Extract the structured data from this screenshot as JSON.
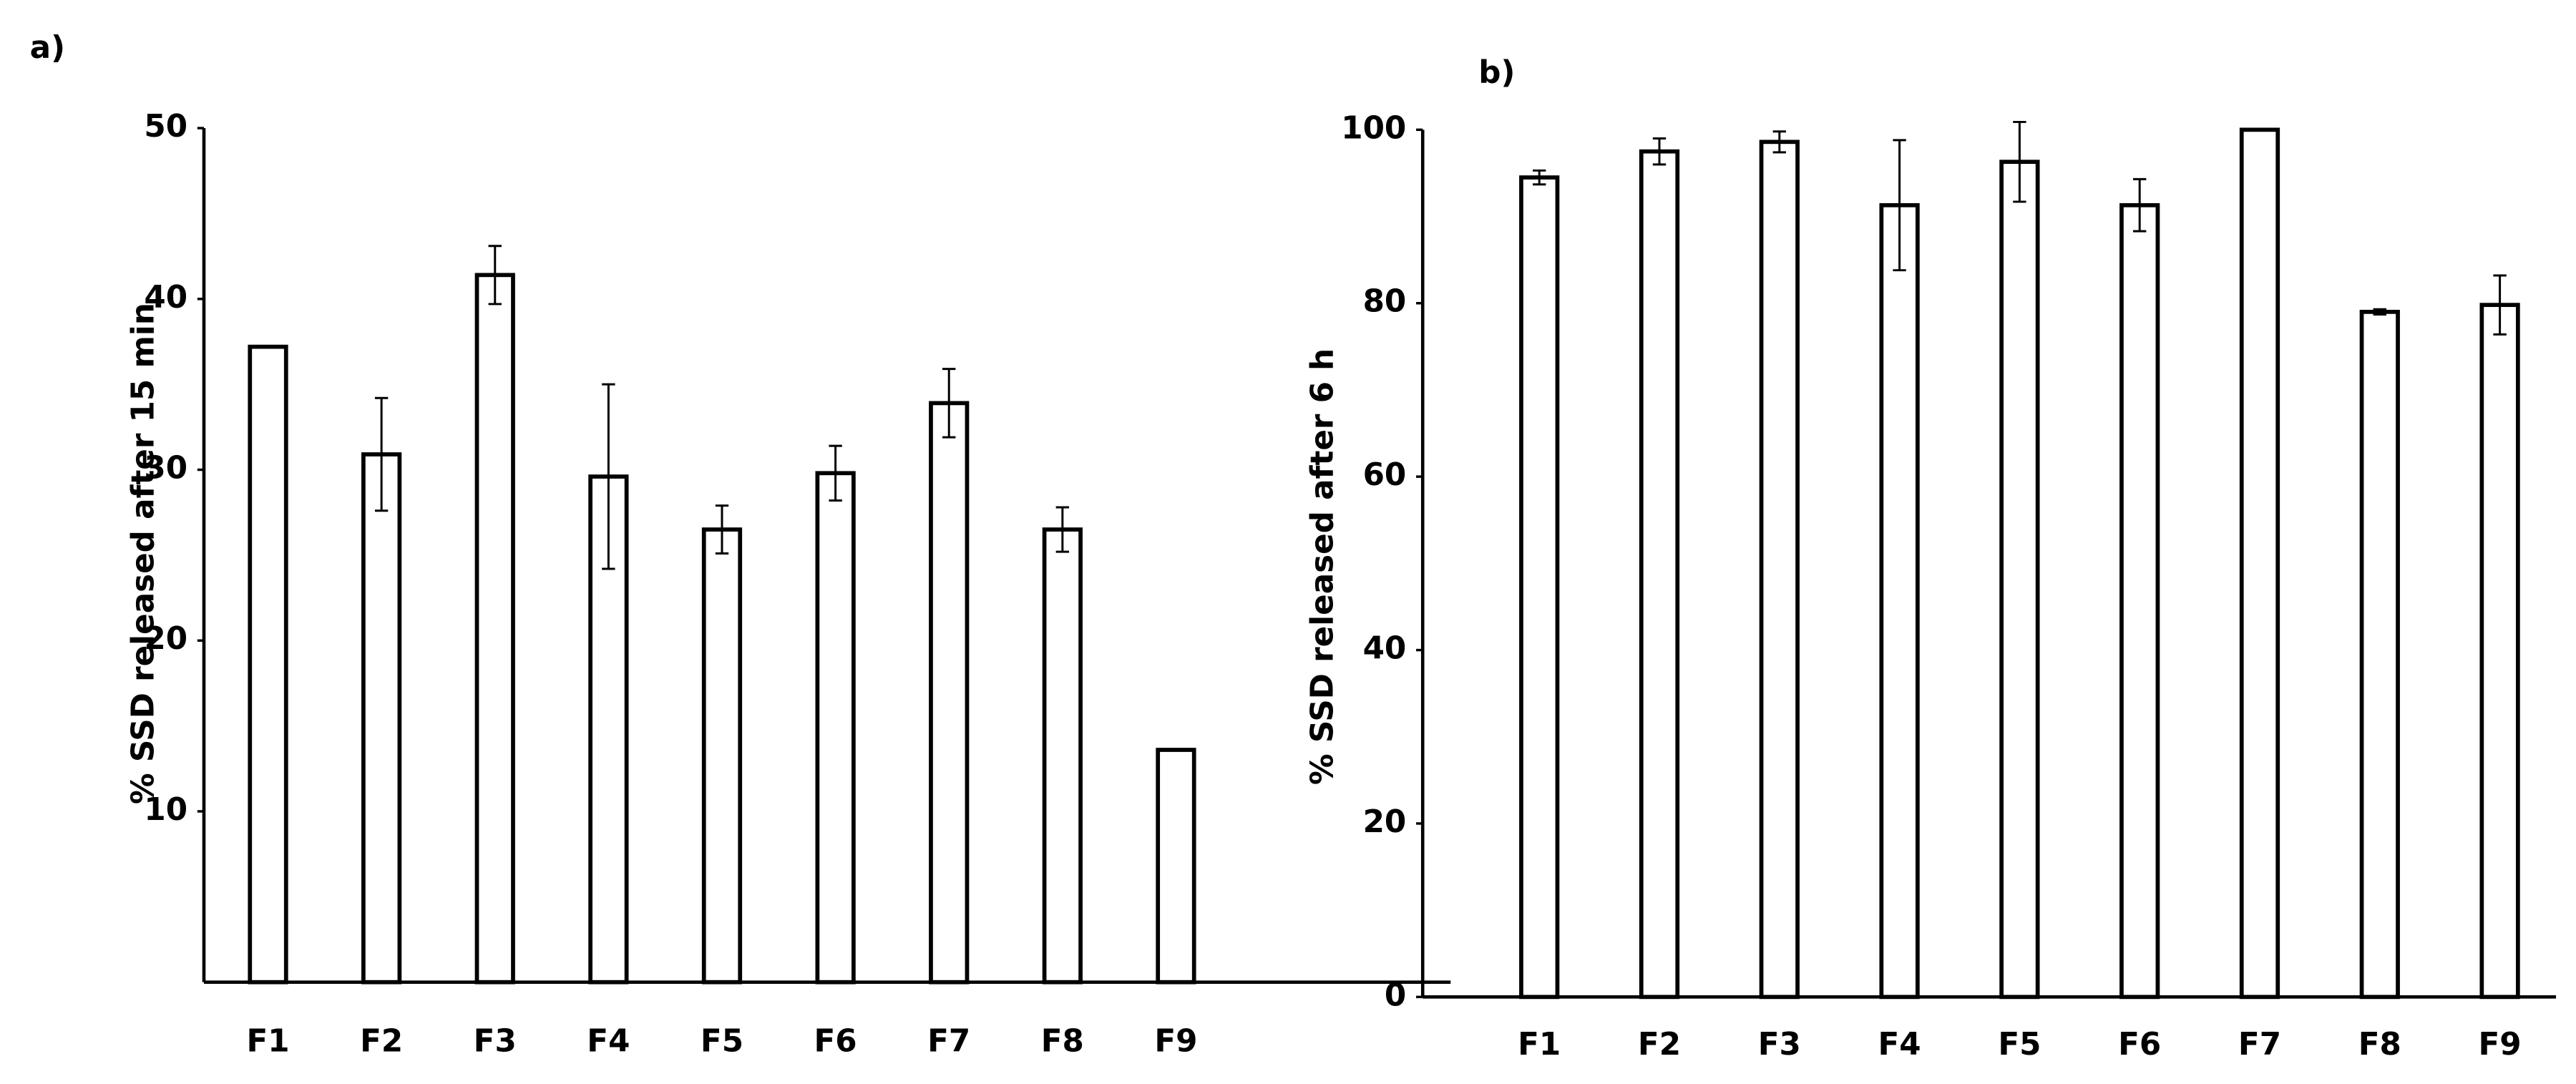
{
  "chart_data": [
    {
      "type": "bar",
      "panel_label": "a)",
      "ylabel": "% SSD released after 15 min",
      "categories": [
        "F1",
        "F2",
        "F3",
        "F4",
        "F5",
        "F6",
        "F7",
        "F8",
        "F9"
      ],
      "values": [
        37.2,
        30.9,
        41.4,
        29.6,
        26.5,
        29.8,
        33.9,
        26.5,
        13.6
      ],
      "errors": [
        null,
        3.3,
        1.7,
        5.4,
        1.4,
        1.6,
        2.0,
        1.3,
        null
      ],
      "color": "#ffffff",
      "edge_color": "#000000",
      "ylim": [
        0,
        50
      ],
      "yticks": [
        10,
        20,
        30,
        40,
        50
      ],
      "grid": false
    },
    {
      "type": "bar",
      "panel_label": "b)",
      "ylabel": "% SSD released after 6 h",
      "categories": [
        "F1",
        "F2",
        "F3",
        "F4",
        "F5",
        "F6",
        "F7",
        "F8",
        "F9"
      ],
      "values": [
        94.5,
        97.5,
        98.6,
        91.3,
        96.3,
        91.3,
        100,
        79.0,
        79.8
      ],
      "errors": [
        0.8,
        1.5,
        1.2,
        7.5,
        4.6,
        3.0,
        null,
        0.3,
        3.4
      ],
      "color": "#ffffff",
      "edge_color": "#000000",
      "ylim": [
        0,
        100
      ],
      "yticks": [
        0,
        20,
        40,
        60,
        80,
        100
      ],
      "grid": false
    }
  ]
}
